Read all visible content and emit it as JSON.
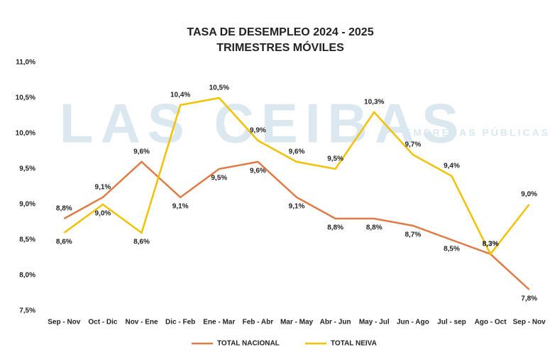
{
  "chart_data": {
    "type": "line",
    "title": "TASA DE DESEMPLEO 2024 - 2025",
    "subtitle": "TRIMESTRES MÓVILES",
    "watermark": "LAS CEIBAS",
    "watermark_sub": "EMPRESAS PÚBLICAS DE NEIVA E.S.P",
    "categories": [
      "Sep - Nov",
      "Oct - Dic",
      "Nov - Ene",
      "Dic - Feb",
      "Ene - Mar",
      "Feb - Abr",
      "Mar - May",
      "Abr - Jun",
      "May - Jul",
      "Jun - Ago",
      "Jul - sep",
      "Ago - Oct",
      "Sep - Nov"
    ],
    "series": [
      {
        "name": "TOTAL NACIONAL",
        "color": "#e07b45",
        "values": [
          8.8,
          9.1,
          9.6,
          9.1,
          9.5,
          9.6,
          9.1,
          8.8,
          8.8,
          8.7,
          8.5,
          8.3,
          7.8
        ],
        "value_labels": [
          "8,8%",
          "9,1%",
          "9,6%",
          "9,1%",
          "9,5%",
          "9,6%",
          "9,1%",
          "8,8%",
          "8,8%",
          "8,7%",
          "8,5%",
          "8,3%",
          "7,8%"
        ]
      },
      {
        "name": "TOTAL NEIVA",
        "color": "#f2c200",
        "values": [
          8.6,
          9.0,
          8.6,
          10.4,
          10.5,
          9.9,
          9.6,
          9.5,
          10.3,
          9.7,
          9.4,
          8.3,
          9.0
        ],
        "value_labels": [
          "8,6%",
          "9,0%",
          "8,6%",
          "10,4%",
          "10,5%",
          "9,9%",
          "9,6%",
          "9,5%",
          "10,3%",
          "9,7%",
          "9,4%",
          "8,3%",
          "9,0%"
        ]
      }
    ],
    "ylim": [
      7.5,
      11.0
    ],
    "yticks": [
      {
        "value": 7.5,
        "label": "7,5%"
      },
      {
        "value": 8.0,
        "label": "8,0%"
      },
      {
        "value": 8.5,
        "label": "8,5%"
      },
      {
        "value": 9.0,
        "label": "9,0%"
      },
      {
        "value": 9.5,
        "label": "9,5%"
      },
      {
        "value": 10.0,
        "label": "10,0%"
      },
      {
        "value": 10.5,
        "label": "10,5%"
      },
      {
        "value": 11.0,
        "label": "11,0%"
      }
    ],
    "grid": false,
    "legend": "bottom"
  }
}
